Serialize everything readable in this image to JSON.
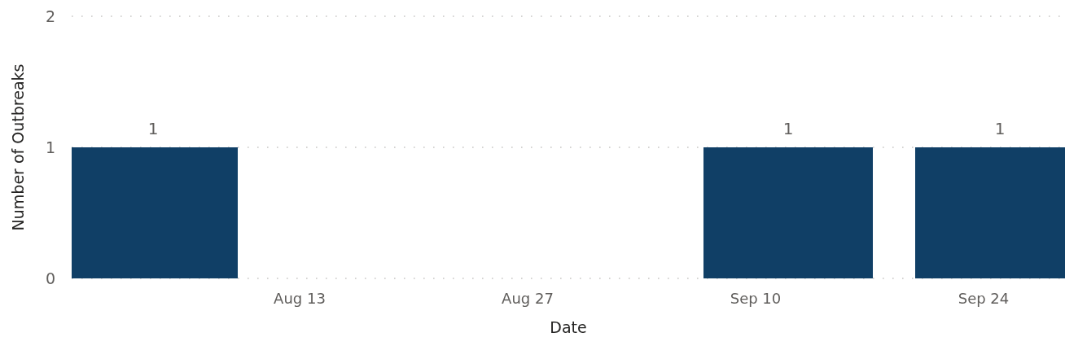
{
  "chart_data": {
    "type": "bar",
    "xlabel": "Date",
    "ylabel": "Number of Outbreaks",
    "x": [
      "--08-04",
      "--09-12",
      "--09-25"
    ],
    "values": [
      1,
      1,
      1
    ],
    "color": "#103f66",
    "xlim": [
      "--07-30",
      "--09-29"
    ],
    "xticks": [
      {
        "value": "--08-13",
        "label": "Aug 13"
      },
      {
        "value": "--08-27",
        "label": "Aug 27"
      },
      {
        "value": "--09-10",
        "label": "Sep 10"
      },
      {
        "value": "--09-24",
        "label": "Sep 24"
      }
    ],
    "ylim": [
      0,
      2
    ],
    "yticks": [
      0,
      1,
      2
    ],
    "grid": "y",
    "data_labels": true
  }
}
